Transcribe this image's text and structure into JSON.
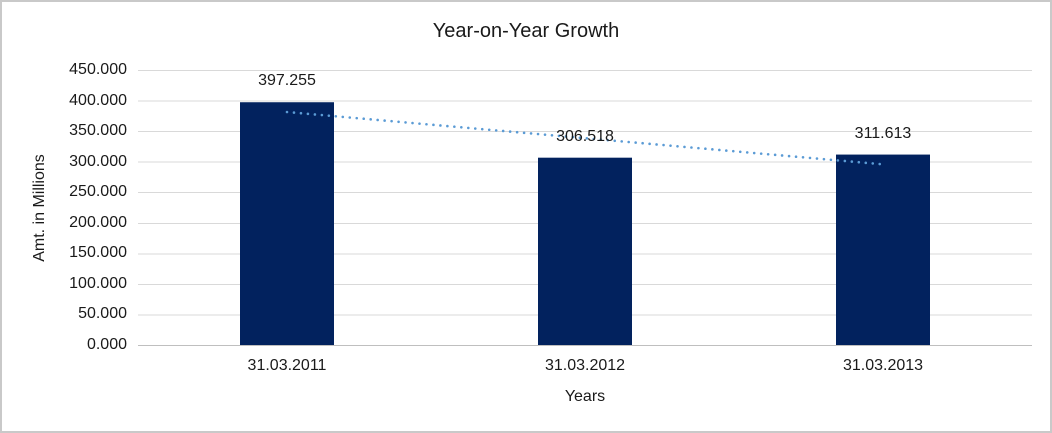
{
  "chart_data": {
    "type": "bar",
    "title": "Year-on-Year Growth",
    "xlabel": "Years",
    "ylabel": "Amt. in Millions",
    "categories": [
      "31.03.2011",
      "31.03.2012",
      "31.03.2013"
    ],
    "values": [
      397.255,
      306.518,
      311.613
    ],
    "value_labels": [
      "397.255",
      "306.518",
      "311.613"
    ],
    "ylim": [
      0,
      450
    ],
    "y_tick_step": 50,
    "y_tick_values": [
      450,
      400,
      350,
      300,
      250,
      200,
      150,
      100,
      50,
      0
    ],
    "y_tick_labels": [
      "450.000",
      "400.000",
      "350.000",
      "300.000",
      "250.000",
      "200.000",
      "150.000",
      "100.000",
      "50.000",
      "0.000"
    ],
    "grid": true,
    "legend": false,
    "trendline": {
      "type": "linear",
      "style": "dotted",
      "color": "#5B9BD5"
    },
    "colors": {
      "bar": "#02225E",
      "trendline": "#5B9BD5",
      "gridline": "#D9D9D9",
      "axis_line": "#BFBFBF",
      "text": "#1A1A1A",
      "background": "#FFFFFF",
      "border": "#C9C9C9"
    }
  }
}
